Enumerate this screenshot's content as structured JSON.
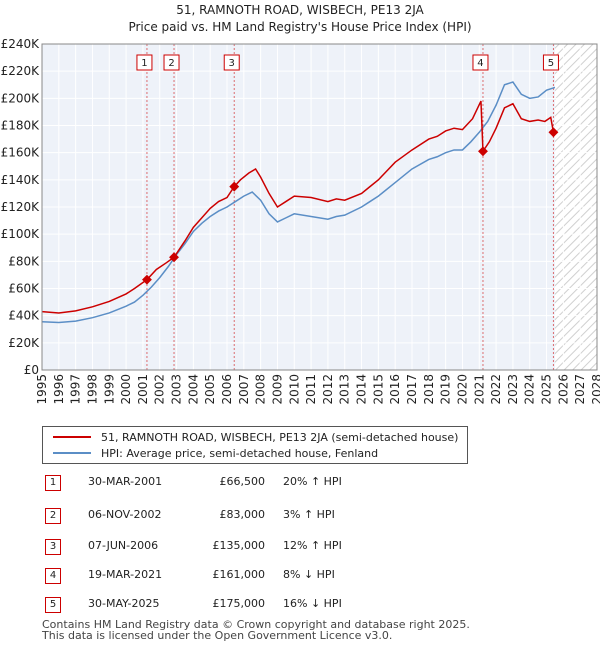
{
  "title_line1": "51, RAMNOTH ROAD, WISBECH, PE13 2JA",
  "title_line2": "Price paid vs. HM Land Registry's House Price Index (HPI)",
  "chart_data": {
    "type": "line",
    "title": "51, RAMNOTH ROAD, WISBECH, PE13 2JA — Price paid vs. HM Land Registry's House Price Index (HPI)",
    "xlabel": "",
    "ylabel": "",
    "xlim": [
      1995,
      2028
    ],
    "ylim": [
      0,
      240000
    ],
    "x_ticks": [
      "1995",
      "1996",
      "1997",
      "1998",
      "1999",
      "2000",
      "2001",
      "2002",
      "2003",
      "2004",
      "2005",
      "2006",
      "2007",
      "2008",
      "2009",
      "2010",
      "2011",
      "2012",
      "2013",
      "2014",
      "2015",
      "2016",
      "2017",
      "2018",
      "2019",
      "2020",
      "2021",
      "2022",
      "2023",
      "2024",
      "2025",
      "2026",
      "2027",
      "2028"
    ],
    "y_ticks": [
      "£0",
      "£20K",
      "£40K",
      "£60K",
      "£80K",
      "£100K",
      "£120K",
      "£140K",
      "£160K",
      "£180K",
      "£200K",
      "£220K",
      "£240K"
    ],
    "y_tick_values": [
      0,
      20000,
      40000,
      60000,
      80000,
      100000,
      120000,
      140000,
      160000,
      180000,
      200000,
      220000,
      240000
    ],
    "grid": true,
    "projection_start": 2025.5,
    "series": [
      {
        "name": "51, RAMNOTH ROAD, WISBECH, PE13 2JA (semi-detached house)",
        "color": "#cc0000",
        "points": [
          [
            1995,
            43000
          ],
          [
            1996,
            42000
          ],
          [
            1997,
            43500
          ],
          [
            1998,
            46500
          ],
          [
            1999,
            50500
          ],
          [
            2000,
            56000
          ],
          [
            2000.5,
            60000
          ],
          [
            2001.24,
            66500
          ],
          [
            2001.8,
            74000
          ],
          [
            2002.4,
            79000
          ],
          [
            2002.85,
            83000
          ],
          [
            2003.5,
            95000
          ],
          [
            2004,
            105000
          ],
          [
            2004.5,
            112000
          ],
          [
            2005,
            119000
          ],
          [
            2005.5,
            124000
          ],
          [
            2006,
            127000
          ],
          [
            2006.43,
            135000
          ],
          [
            2006.8,
            140000
          ],
          [
            2007.3,
            145000
          ],
          [
            2007.7,
            148000
          ],
          [
            2008,
            142000
          ],
          [
            2008.5,
            130000
          ],
          [
            2009,
            120000
          ],
          [
            2009.5,
            124000
          ],
          [
            2010,
            128000
          ],
          [
            2011,
            127000
          ],
          [
            2012,
            124000
          ],
          [
            2012.5,
            126000
          ],
          [
            2013,
            125000
          ],
          [
            2014,
            130000
          ],
          [
            2014.5,
            135000
          ],
          [
            2015,
            140000
          ],
          [
            2016,
            153000
          ],
          [
            2017,
            162000
          ],
          [
            2018,
            170000
          ],
          [
            2018.5,
            172000
          ],
          [
            2019,
            176000
          ],
          [
            2019.5,
            178000
          ],
          [
            2020,
            177000
          ],
          [
            2020.6,
            185000
          ],
          [
            2021.1,
            198000
          ],
          [
            2021.22,
            161000
          ],
          [
            2021.6,
            168000
          ],
          [
            2022,
            178000
          ],
          [
            2022.5,
            193000
          ],
          [
            2023,
            196000
          ],
          [
            2023.5,
            185000
          ],
          [
            2024,
            183000
          ],
          [
            2024.5,
            184000
          ],
          [
            2024.9,
            183000
          ],
          [
            2025.25,
            186000
          ],
          [
            2025.41,
            175000
          ],
          [
            2025.5,
            174000
          ]
        ]
      },
      {
        "name": "HPI: Average price, semi-detached house, Fenland",
        "color": "#5b8ec6",
        "points": [
          [
            1995,
            35500
          ],
          [
            1996,
            35000
          ],
          [
            1997,
            36000
          ],
          [
            1998,
            38500
          ],
          [
            1999,
            42000
          ],
          [
            2000,
            47000
          ],
          [
            2000.5,
            50000
          ],
          [
            2001,
            55000
          ],
          [
            2001.5,
            61000
          ],
          [
            2002,
            68000
          ],
          [
            2002.5,
            76000
          ],
          [
            2003,
            85000
          ],
          [
            2003.5,
            93000
          ],
          [
            2004,
            102000
          ],
          [
            2004.5,
            108000
          ],
          [
            2005,
            113000
          ],
          [
            2005.5,
            117000
          ],
          [
            2006,
            120000
          ],
          [
            2006.5,
            124000
          ],
          [
            2007,
            128000
          ],
          [
            2007.5,
            131000
          ],
          [
            2008,
            125000
          ],
          [
            2008.5,
            115000
          ],
          [
            2009,
            109000
          ],
          [
            2009.5,
            112000
          ],
          [
            2010,
            115000
          ],
          [
            2011,
            113000
          ],
          [
            2012,
            111000
          ],
          [
            2012.5,
            113000
          ],
          [
            2013,
            114000
          ],
          [
            2014,
            120000
          ],
          [
            2014.5,
            124000
          ],
          [
            2015,
            128000
          ],
          [
            2016,
            138000
          ],
          [
            2017,
            148000
          ],
          [
            2018,
            155000
          ],
          [
            2018.5,
            157000
          ],
          [
            2019,
            160000
          ],
          [
            2019.5,
            162000
          ],
          [
            2020,
            162000
          ],
          [
            2020.5,
            168000
          ],
          [
            2021,
            175000
          ],
          [
            2021.5,
            183000
          ],
          [
            2022,
            195000
          ],
          [
            2022.5,
            210000
          ],
          [
            2023,
            212000
          ],
          [
            2023.5,
            203000
          ],
          [
            2024,
            200000
          ],
          [
            2024.5,
            201000
          ],
          [
            2025,
            206000
          ],
          [
            2025.5,
            208000
          ]
        ]
      }
    ],
    "markers": [
      {
        "label": "1",
        "x": 2001.24,
        "y": 66500
      },
      {
        "label": "2",
        "x": 2002.85,
        "y": 83000
      },
      {
        "label": "3",
        "x": 2006.43,
        "y": 135000
      },
      {
        "label": "4",
        "x": 2021.22,
        "y": 161000
      },
      {
        "label": "5",
        "x": 2025.41,
        "y": 175000
      }
    ]
  },
  "legend": {
    "series1": "51, RAMNOTH ROAD, WISBECH, PE13 2JA (semi-detached house)",
    "series2": "HPI: Average price, semi-detached house, Fenland",
    "color1": "#cc0000",
    "color2": "#5b8ec6"
  },
  "sales": [
    {
      "num": "1",
      "date": "30-MAR-2001",
      "price": "£66,500",
      "hpi": "20% ↑ HPI"
    },
    {
      "num": "2",
      "date": "06-NOV-2002",
      "price": "£83,000",
      "hpi": "3% ↑ HPI"
    },
    {
      "num": "3",
      "date": "07-JUN-2006",
      "price": "£135,000",
      "hpi": "12% ↑ HPI"
    },
    {
      "num": "4",
      "date": "19-MAR-2021",
      "price": "£161,000",
      "hpi": "8% ↓ HPI"
    },
    {
      "num": "5",
      "date": "30-MAY-2025",
      "price": "£175,000",
      "hpi": "16% ↓ HPI"
    }
  ],
  "footer": {
    "line1": "Contains HM Land Registry data © Crown copyright and database right 2025.",
    "line2": "This data is licensed under the Open Government Licence v3.0."
  }
}
